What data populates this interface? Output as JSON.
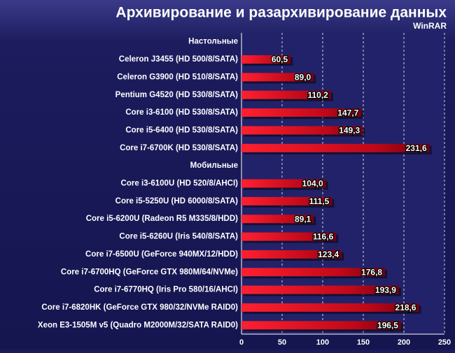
{
  "chart_data": {
    "type": "bar",
    "orientation": "horizontal",
    "title": "Архивирование и разархивирование данных",
    "subtitle": "WinRAR",
    "categories": [
      "Настольные",
      "Celeron J3455 (HD 500/8/SATA)",
      "Celeron G3900 (HD 510/8/SATA)",
      "Pentium G4520 (HD 530/8/SATA)",
      "Core i3-6100 (HD 530/8/SATA)",
      "Core i5-6400 (HD 530/8/SATA)",
      "Core i7-6700K (HD 530/8/SATA)",
      "Мобильные",
      "Core i3-6100U (HD 520/8/AHCI)",
      "Core i5-5250U (HD 6000/8/SATA)",
      "Core i5-6200U (Radeon R5 M335/8/HDD)",
      "Core i5-6260U (Iris 540/8/SATA)",
      "Core i7-6500U (GeForce 940MX/12/HDD)",
      "Core i7-6700HQ (GeForce GTX 980M/64/NVMe)",
      "Core i7-6770HQ (Iris Pro 580/16/AHCI)",
      "Core i7-6820HK (GeForce GTX 980/32/NVMe RAID0)",
      "Xeon E3-1505M v5 (Quadro M2000M/32/SATA RAID0)"
    ],
    "values": [
      null,
      60.5,
      89.0,
      110.2,
      147.7,
      149.3,
      231.6,
      null,
      104.0,
      111.5,
      89.1,
      116.6,
      123.4,
      176.8,
      193.9,
      218.6,
      196.5
    ],
    "value_labels": [
      null,
      "60,5",
      "89,0",
      "110,2",
      "147,7",
      "149,3",
      "231,6",
      null,
      "104,0",
      "111,5",
      "89,1",
      "116,6",
      "123,4",
      "176,8",
      "193,9",
      "218,6",
      "196,5"
    ],
    "color": "#d0101a",
    "xlim": [
      0,
      250
    ],
    "xticks": [
      0,
      50,
      100,
      150,
      200,
      250
    ],
    "grid": true
  }
}
